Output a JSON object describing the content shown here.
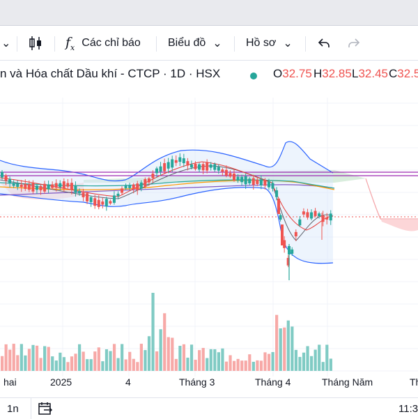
{
  "toolbar": {
    "chevron": "⌄",
    "indicators_label": "Các chỉ báo",
    "chart_type_label": "Biểu đồ",
    "profile_label": "Hồ sơ"
  },
  "legend": {
    "title": "n và Hóa chất Dầu khí - CTCP · 1D · HSX",
    "open_label": "O",
    "open": "32.75",
    "high_label": "H",
    "high": "32.85",
    "low_label": "L",
    "low": "32.45",
    "close_label": "C",
    "close": "32.5",
    "up_color": "#26a69a",
    "down_color": "#ef5350"
  },
  "chart_data": {
    "type": "candlestick",
    "title": "n và Hóa chất Dầu khí - CTCP · 1D · HSX",
    "x_ticks": [
      "hai",
      "2025",
      "4",
      "Tháng 3",
      "Tháng 4",
      "Tháng Năm",
      "Th"
    ],
    "last": {
      "open": 32.75,
      "high": 32.85,
      "low": 32.45,
      "close": 32.5
    },
    "colors": {
      "up": "#26a69a",
      "down": "#ef5350",
      "bollinger": "#2962ff",
      "grid": "#f0f3fa"
    },
    "grid": true
  },
  "bottom": {
    "range_label": "1n",
    "time": "11:3"
  }
}
